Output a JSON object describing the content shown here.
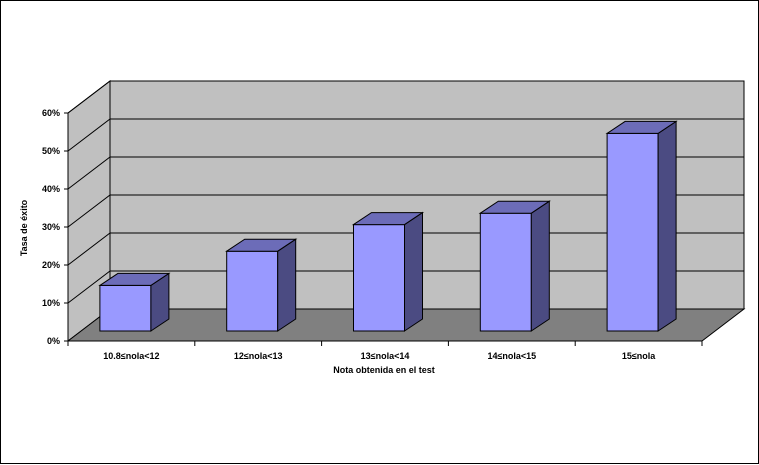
{
  "chart_data": {
    "type": "bar",
    "categories": [
      "10.8≤nola<12",
      "12≤nola<13",
      "13≤nola<14",
      "14≤nola<15",
      "15≤nola"
    ],
    "values": [
      12,
      21,
      28,
      31,
      52
    ],
    "xlabel": "Nota obtenida en el test",
    "ylabel": "Tasa de éxito",
    "ylim": [
      0,
      60
    ],
    "yticks": [
      "0%",
      "10%",
      "20%",
      "30%",
      "40%",
      "50%",
      "60%"
    ],
    "grid": true,
    "legend": "none",
    "colors": {
      "bar_front": "#9999ff",
      "bar_side": "#4b4b82",
      "bar_top": "#6c6cb8",
      "back_wall": "#c0c0c0",
      "side_wall": "#c0c0c0",
      "floor": "#808080"
    }
  }
}
